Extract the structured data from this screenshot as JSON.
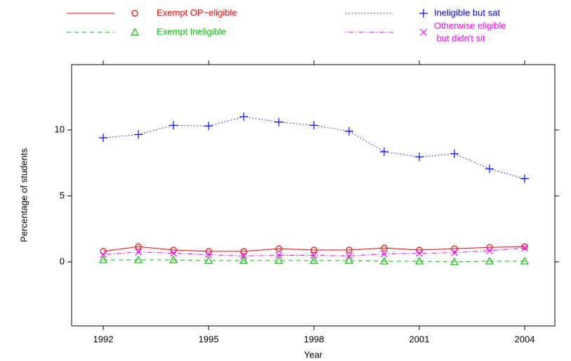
{
  "chart_data": {
    "type": "line",
    "xlabel": "Year",
    "ylabel": "Percentage of students",
    "x": [
      1992,
      1993,
      1994,
      1995,
      1996,
      1997,
      1998,
      1999,
      2000,
      2001,
      2002,
      2003,
      2004
    ],
    "series": [
      {
        "name": "Exempt OP−eligible",
        "color": "#ff0000",
        "dash": "solid",
        "marker": "circle",
        "values": [
          0.8,
          1.15,
          0.9,
          0.8,
          0.8,
          1.0,
          0.9,
          0.9,
          1.05,
          0.9,
          1.0,
          1.1,
          1.15
        ]
      },
      {
        "name": "Exempt Ineligible",
        "color": "#00c000",
        "dash": "dashed",
        "marker": "triangle",
        "values": [
          0.15,
          0.15,
          0.15,
          0.1,
          0.1,
          0.1,
          0.1,
          0.1,
          0.05,
          0.05,
          0.0,
          0.05,
          0.05
        ]
      },
      {
        "name": "Ineligible but sat",
        "color": "#0000ff",
        "dash": "dotted",
        "marker": "plus",
        "values": [
          9.4,
          9.65,
          10.35,
          10.3,
          11.0,
          10.6,
          10.35,
          9.9,
          8.35,
          7.95,
          8.2,
          7.05,
          6.3
        ]
      },
      {
        "name": "Otherwise eligible\n but didn't sit",
        "color": "#ff00ff",
        "dash": "dotdash",
        "marker": "cross",
        "values": [
          0.55,
          0.75,
          0.65,
          0.55,
          0.45,
          0.5,
          0.5,
          0.45,
          0.6,
          0.65,
          0.7,
          0.85,
          1.05
        ]
      }
    ],
    "xlim": [
      1991.1,
      2004.86
    ],
    "ylim": [
      -4.85,
      14.95
    ],
    "xticks": [
      1992,
      1995,
      1998,
      2001,
      2004
    ],
    "yticks": [
      0,
      5,
      10
    ]
  }
}
